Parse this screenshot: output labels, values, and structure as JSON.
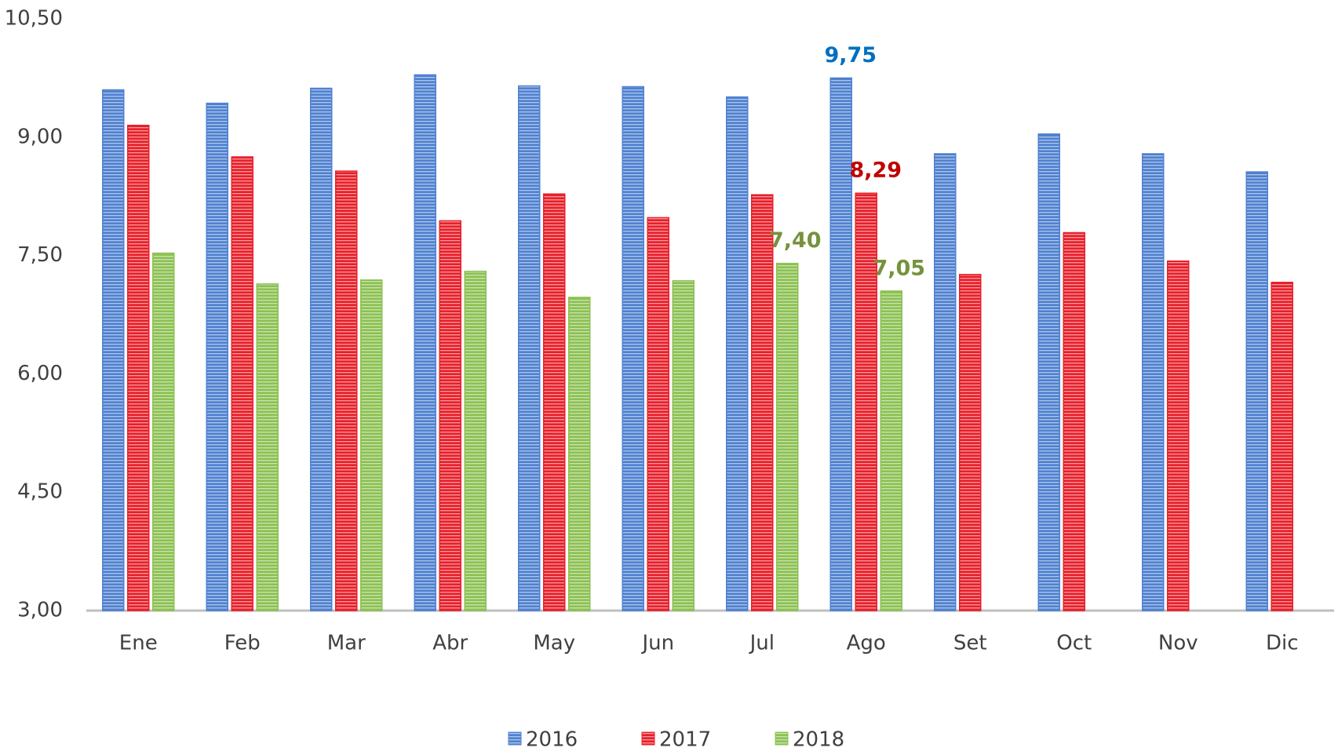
{
  "chart_data": {
    "type": "bar",
    "categories": [
      "Ene",
      "Feb",
      "Mar",
      "Abr",
      "May",
      "Jun",
      "Jul",
      "Ago",
      "Set",
      "Oct",
      "Nov",
      "Dic"
    ],
    "series": [
      {
        "name": "2016",
        "color": "#4f81d0",
        "label_color": "#0070c0",
        "values": [
          9.6,
          9.43,
          9.62,
          9.79,
          9.65,
          9.64,
          9.51,
          9.75,
          8.79,
          9.04,
          8.79,
          8.56
        ],
        "value_labels": [
          null,
          null,
          null,
          null,
          null,
          null,
          null,
          "9,75",
          null,
          null,
          null,
          null
        ]
      },
      {
        "name": "2017",
        "color": "#e8202a",
        "label_color": "#c00000",
        "values": [
          9.15,
          8.75,
          8.57,
          7.94,
          8.28,
          7.98,
          8.27,
          8.29,
          7.26,
          7.79,
          7.43,
          7.16
        ],
        "value_labels": [
          null,
          null,
          null,
          null,
          null,
          null,
          null,
          "8,29",
          null,
          null,
          null,
          null
        ]
      },
      {
        "name": "2018",
        "color": "#8cc152",
        "label_color": "#76923c",
        "values": [
          7.53,
          7.14,
          7.19,
          7.3,
          6.97,
          7.18,
          7.4,
          7.05,
          null,
          null,
          null,
          null
        ],
        "value_labels": [
          null,
          null,
          null,
          null,
          null,
          null,
          "7,40",
          "7,05",
          null,
          null,
          null,
          null
        ]
      }
    ],
    "ylim": [
      3,
      10.5
    ],
    "yticks": [
      {
        "value": 3,
        "label": "3,00"
      },
      {
        "value": 4.5,
        "label": "4,50"
      },
      {
        "value": 6,
        "label": "6,00"
      },
      {
        "value": 7.5,
        "label": "7,50"
      },
      {
        "value": 9,
        "label": "9,00"
      },
      {
        "value": 10.5,
        "label": "10,50"
      }
    ],
    "legend": "bottom"
  }
}
